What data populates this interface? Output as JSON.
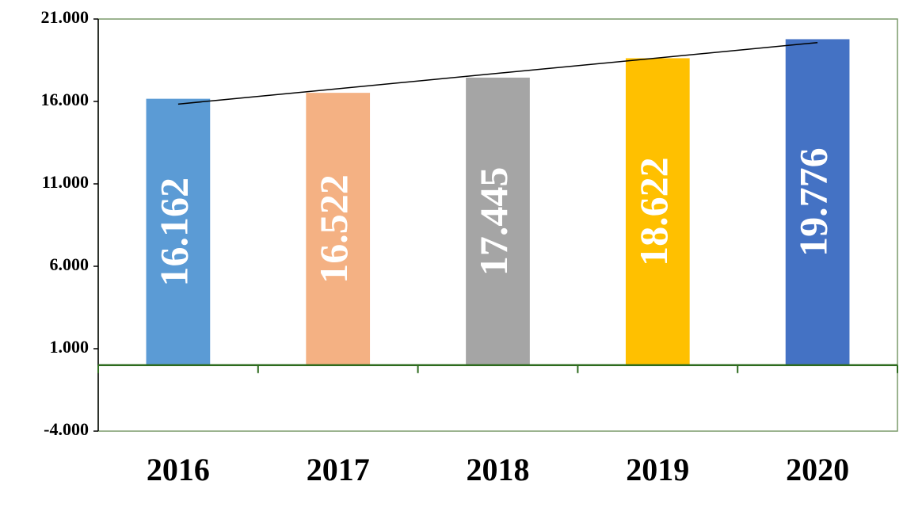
{
  "chart_data": {
    "type": "bar",
    "categories": [
      "2016",
      "2017",
      "2018",
      "2019",
      "2020"
    ],
    "values": [
      16162,
      16522,
      17445,
      18622,
      19776
    ],
    "value_labels": [
      "16.162",
      "16.522",
      "17.445",
      "18.622",
      "19.776"
    ],
    "colors": [
      "#5b9bd5",
      "#f4b183",
      "#a5a5a5",
      "#ffc000",
      "#4472c4"
    ],
    "ylim": [
      -4000,
      21000
    ],
    "yticks": [
      {
        "value": -4000,
        "label": "-4.000"
      },
      {
        "value": 1000,
        "label": "1.000"
      },
      {
        "value": 6000,
        "label": "6.000"
      },
      {
        "value": 11000,
        "label": "11.000"
      },
      {
        "value": 16000,
        "label": "16.000"
      },
      {
        "value": 21000,
        "label": "21.000"
      }
    ],
    "trendline": "linear"
  }
}
